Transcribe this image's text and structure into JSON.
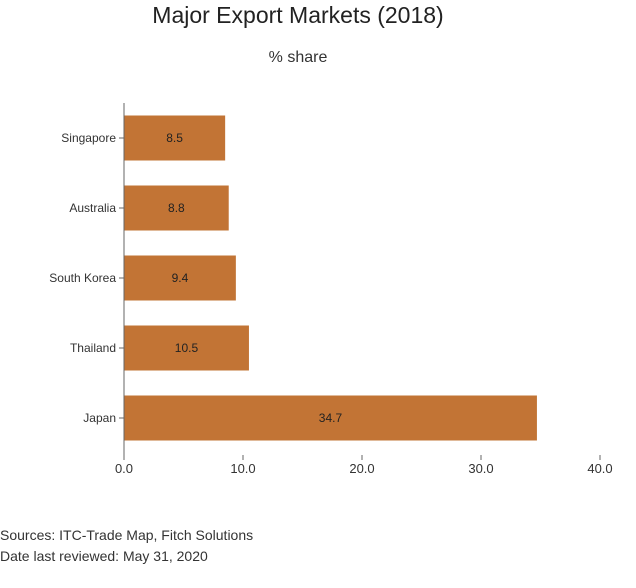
{
  "chart_data": {
    "type": "bar",
    "orientation": "horizontal",
    "title": "Major Export Markets (2018)",
    "subtitle": "% share",
    "categories": [
      "Singapore",
      "Australia",
      "South Korea",
      "Thailand",
      "Japan"
    ],
    "values": [
      8.5,
      8.8,
      9.4,
      10.5,
      34.7
    ],
    "xlim": [
      0,
      40
    ],
    "xticks": [
      0,
      10,
      20,
      30,
      40
    ],
    "xtick_labels": [
      "0.0",
      "10.0",
      "20.0",
      "30.0",
      "40.0"
    ],
    "data_labels": [
      "8.5",
      "8.8",
      "9.4",
      "10.5",
      "34.7"
    ],
    "grid": false,
    "legend": "none",
    "colors": {
      "bar": "#c27435",
      "axis": "#666666",
      "text": "#222222"
    }
  },
  "footer": {
    "source_line": "Sources: ITC-Trade Map, Fitch Solutions",
    "date_line": "Date last reviewed: May 31, 2020"
  }
}
